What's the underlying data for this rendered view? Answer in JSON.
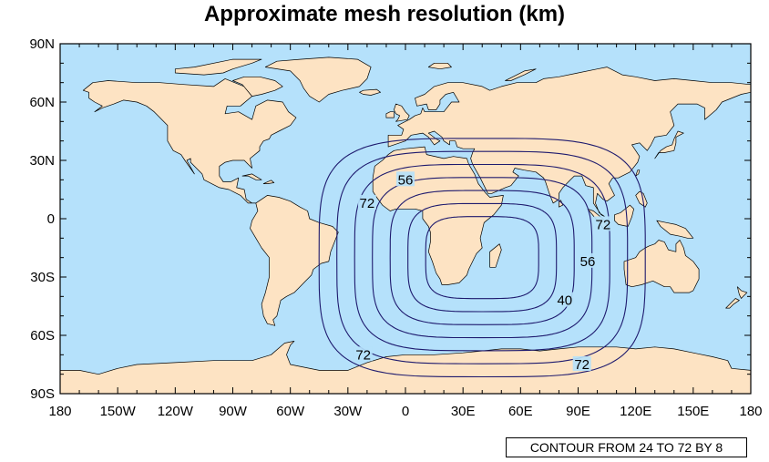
{
  "title": "Approximate mesh resolution (km)",
  "info_label": "CONTOUR FROM 24 TO 72 BY 8",
  "colors": {
    "ocean": "#b5e1fb",
    "land": "#fde3c3",
    "coast": "#000000",
    "contour": "#1e1a6e"
  },
  "x_axis_labels": [
    "180",
    "150W",
    "120W",
    "90W",
    "60W",
    "30W",
    "0",
    "30E",
    "60E",
    "90E",
    "120E",
    "150E",
    "180"
  ],
  "y_axis_labels": [
    "90N",
    "60N",
    "30N",
    "0",
    "30S",
    "60S",
    "90S"
  ],
  "chart_data": {
    "type": "contour",
    "title": "Approximate mesh resolution (km)",
    "projection": "cylindrical equidistant",
    "lon_range": [
      -180,
      180
    ],
    "lat_range": [
      -90,
      90
    ],
    "contour_levels": [
      24,
      32,
      40,
      48,
      56,
      64,
      72
    ],
    "contour_interval": 8,
    "refinement_center": {
      "lon": 40,
      "lat": -20
    },
    "contour_labels": [
      {
        "text": "56",
        "lon": 0,
        "lat": 20
      },
      {
        "text": "72",
        "lon": -20,
        "lat": 8
      },
      {
        "text": "72",
        "lon": 103,
        "lat": -3
      },
      {
        "text": "56",
        "lon": 95,
        "lat": -22
      },
      {
        "text": "40",
        "lon": 83,
        "lat": -42
      },
      {
        "text": "72",
        "lon": -22,
        "lat": -70
      },
      {
        "text": "72",
        "lon": 92,
        "lat": -75
      }
    ]
  }
}
